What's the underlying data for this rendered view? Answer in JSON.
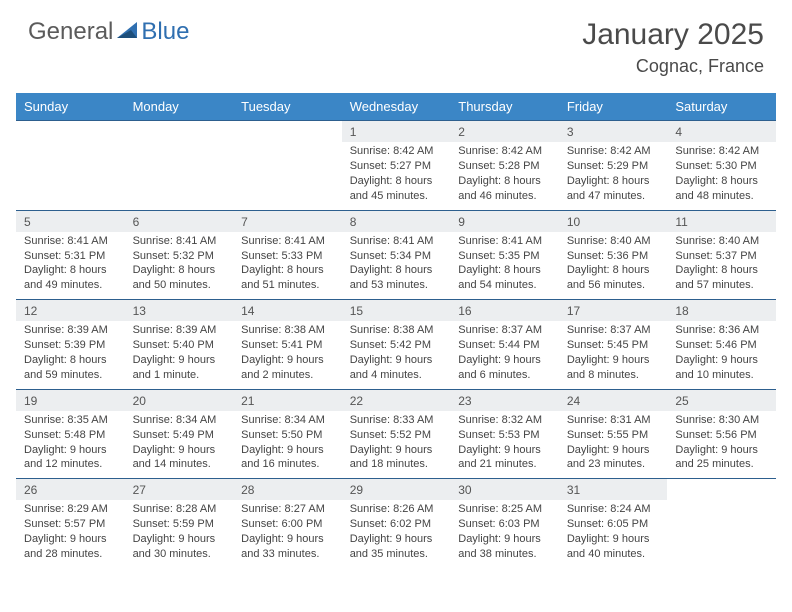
{
  "logo": {
    "part1": "General",
    "part2": "Blue"
  },
  "title": "January 2025",
  "location": "Cognac, France",
  "colors": {
    "header_bg": "#3b86c6",
    "header_text": "#ffffff",
    "daynum_bg": "#eceef0",
    "border": "#2d5f8e",
    "logo_accent": "#2f6fb0",
    "body_text": "#444444"
  },
  "weekdays": [
    "Sunday",
    "Monday",
    "Tuesday",
    "Wednesday",
    "Thursday",
    "Friday",
    "Saturday"
  ],
  "weeks": [
    {
      "nums": [
        "",
        "",
        "",
        "1",
        "2",
        "3",
        "4"
      ],
      "cells": [
        null,
        null,
        null,
        {
          "sunrise": "8:42 AM",
          "sunset": "5:27 PM",
          "day_h": "8",
          "day_m": "45 minutes"
        },
        {
          "sunrise": "8:42 AM",
          "sunset": "5:28 PM",
          "day_h": "8",
          "day_m": "46 minutes"
        },
        {
          "sunrise": "8:42 AM",
          "sunset": "5:29 PM",
          "day_h": "8",
          "day_m": "47 minutes"
        },
        {
          "sunrise": "8:42 AM",
          "sunset": "5:30 PM",
          "day_h": "8",
          "day_m": "48 minutes"
        }
      ]
    },
    {
      "nums": [
        "5",
        "6",
        "7",
        "8",
        "9",
        "10",
        "11"
      ],
      "cells": [
        {
          "sunrise": "8:41 AM",
          "sunset": "5:31 PM",
          "day_h": "8",
          "day_m": "49 minutes"
        },
        {
          "sunrise": "8:41 AM",
          "sunset": "5:32 PM",
          "day_h": "8",
          "day_m": "50 minutes"
        },
        {
          "sunrise": "8:41 AM",
          "sunset": "5:33 PM",
          "day_h": "8",
          "day_m": "51 minutes"
        },
        {
          "sunrise": "8:41 AM",
          "sunset": "5:34 PM",
          "day_h": "8",
          "day_m": "53 minutes"
        },
        {
          "sunrise": "8:41 AM",
          "sunset": "5:35 PM",
          "day_h": "8",
          "day_m": "54 minutes"
        },
        {
          "sunrise": "8:40 AM",
          "sunset": "5:36 PM",
          "day_h": "8",
          "day_m": "56 minutes"
        },
        {
          "sunrise": "8:40 AM",
          "sunset": "5:37 PM",
          "day_h": "8",
          "day_m": "57 minutes"
        }
      ]
    },
    {
      "nums": [
        "12",
        "13",
        "14",
        "15",
        "16",
        "17",
        "18"
      ],
      "cells": [
        {
          "sunrise": "8:39 AM",
          "sunset": "5:39 PM",
          "day_h": "8",
          "day_m": "59 minutes"
        },
        {
          "sunrise": "8:39 AM",
          "sunset": "5:40 PM",
          "day_h": "9",
          "day_m": "1 minute"
        },
        {
          "sunrise": "8:38 AM",
          "sunset": "5:41 PM",
          "day_h": "9",
          "day_m": "2 minutes"
        },
        {
          "sunrise": "8:38 AM",
          "sunset": "5:42 PM",
          "day_h": "9",
          "day_m": "4 minutes"
        },
        {
          "sunrise": "8:37 AM",
          "sunset": "5:44 PM",
          "day_h": "9",
          "day_m": "6 minutes"
        },
        {
          "sunrise": "8:37 AM",
          "sunset": "5:45 PM",
          "day_h": "9",
          "day_m": "8 minutes"
        },
        {
          "sunrise": "8:36 AM",
          "sunset": "5:46 PM",
          "day_h": "9",
          "day_m": "10 minutes"
        }
      ]
    },
    {
      "nums": [
        "19",
        "20",
        "21",
        "22",
        "23",
        "24",
        "25"
      ],
      "cells": [
        {
          "sunrise": "8:35 AM",
          "sunset": "5:48 PM",
          "day_h": "9",
          "day_m": "12 minutes"
        },
        {
          "sunrise": "8:34 AM",
          "sunset": "5:49 PM",
          "day_h": "9",
          "day_m": "14 minutes"
        },
        {
          "sunrise": "8:34 AM",
          "sunset": "5:50 PM",
          "day_h": "9",
          "day_m": "16 minutes"
        },
        {
          "sunrise": "8:33 AM",
          "sunset": "5:52 PM",
          "day_h": "9",
          "day_m": "18 minutes"
        },
        {
          "sunrise": "8:32 AM",
          "sunset": "5:53 PM",
          "day_h": "9",
          "day_m": "21 minutes"
        },
        {
          "sunrise": "8:31 AM",
          "sunset": "5:55 PM",
          "day_h": "9",
          "day_m": "23 minutes"
        },
        {
          "sunrise": "8:30 AM",
          "sunset": "5:56 PM",
          "day_h": "9",
          "day_m": "25 minutes"
        }
      ]
    },
    {
      "nums": [
        "26",
        "27",
        "28",
        "29",
        "30",
        "31",
        ""
      ],
      "cells": [
        {
          "sunrise": "8:29 AM",
          "sunset": "5:57 PM",
          "day_h": "9",
          "day_m": "28 minutes"
        },
        {
          "sunrise": "8:28 AM",
          "sunset": "5:59 PM",
          "day_h": "9",
          "day_m": "30 minutes"
        },
        {
          "sunrise": "8:27 AM",
          "sunset": "6:00 PM",
          "day_h": "9",
          "day_m": "33 minutes"
        },
        {
          "sunrise": "8:26 AM",
          "sunset": "6:02 PM",
          "day_h": "9",
          "day_m": "35 minutes"
        },
        {
          "sunrise": "8:25 AM",
          "sunset": "6:03 PM",
          "day_h": "9",
          "day_m": "38 minutes"
        },
        {
          "sunrise": "8:24 AM",
          "sunset": "6:05 PM",
          "day_h": "9",
          "day_m": "40 minutes"
        },
        null
      ]
    }
  ]
}
